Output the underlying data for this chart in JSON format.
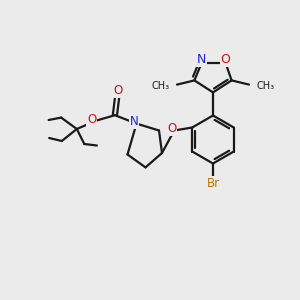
{
  "background_color": "#ebebeb",
  "bond_color": "#1a1a1a",
  "bond_width": 1.6,
  "atom_colors": {
    "N": "#2020cc",
    "O": "#cc1111",
    "Br": "#bb7700",
    "C": "#1a1a1a"
  },
  "font_size": 8.5,
  "fig_size": [
    3.0,
    3.0
  ],
  "dpi": 100
}
